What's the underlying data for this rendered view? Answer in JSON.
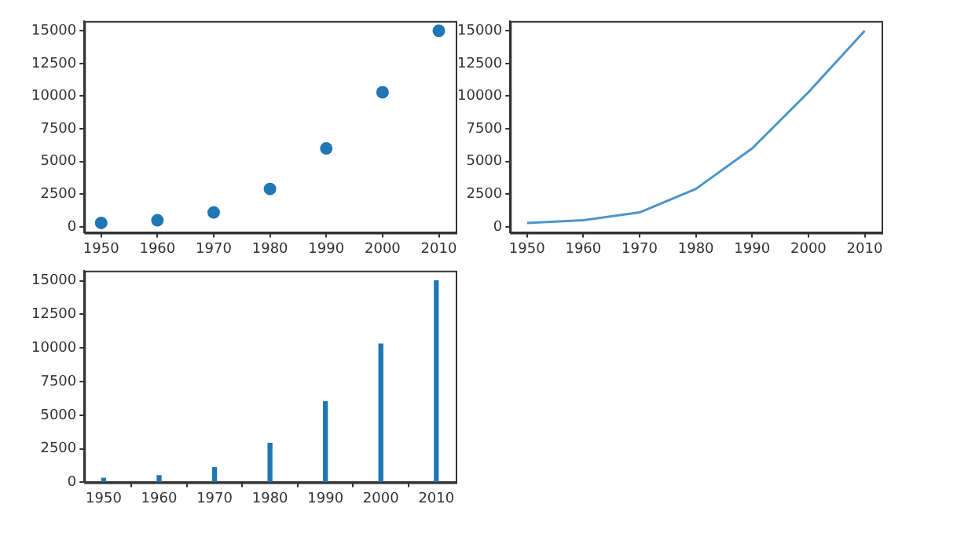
{
  "chart_data": [
    {
      "type": "scatter",
      "x": [
        1950,
        1960,
        1970,
        1980,
        1990,
        2000,
        2010
      ],
      "values": [
        300,
        500,
        1100,
        2900,
        6000,
        10300,
        15000
      ],
      "color": "#1f77b4",
      "marker": "circle",
      "xlim": [
        1947,
        2013
      ],
      "xticks": [
        1950,
        1960,
        1970,
        1980,
        1990,
        2000,
        2010
      ],
      "ylim": [
        -450,
        15750
      ],
      "yticks": [
        0,
        2500,
        5000,
        7500,
        10000,
        12500,
        15000
      ]
    },
    {
      "type": "line",
      "x": [
        1950,
        1960,
        1970,
        1980,
        1990,
        2000,
        2010
      ],
      "values": [
        300,
        500,
        1100,
        2900,
        6000,
        10300,
        15000
      ],
      "color": "#4e94c8",
      "xlim": [
        1947,
        2013
      ],
      "xticks": [
        1950,
        1960,
        1970,
        1980,
        1990,
        2000,
        2010
      ],
      "ylim": [
        -450,
        15750
      ],
      "yticks": [
        0,
        2500,
        5000,
        7500,
        10000,
        12500,
        15000
      ]
    },
    {
      "type": "bar",
      "x": [
        1950,
        1960,
        1970,
        1980,
        1990,
        2000,
        2010
      ],
      "values": [
        300,
        500,
        1100,
        2900,
        6000,
        10300,
        15000
      ],
      "color": "#1f77b4",
      "xlim": [
        1946.5,
        2013.5
      ],
      "xticks": [
        1950,
        1960,
        1970,
        1980,
        1990,
        2000,
        2010
      ],
      "ylim": [
        0,
        15750
      ],
      "yticks": [
        0,
        2500,
        5000,
        7500,
        10000,
        12500,
        15000
      ]
    }
  ]
}
